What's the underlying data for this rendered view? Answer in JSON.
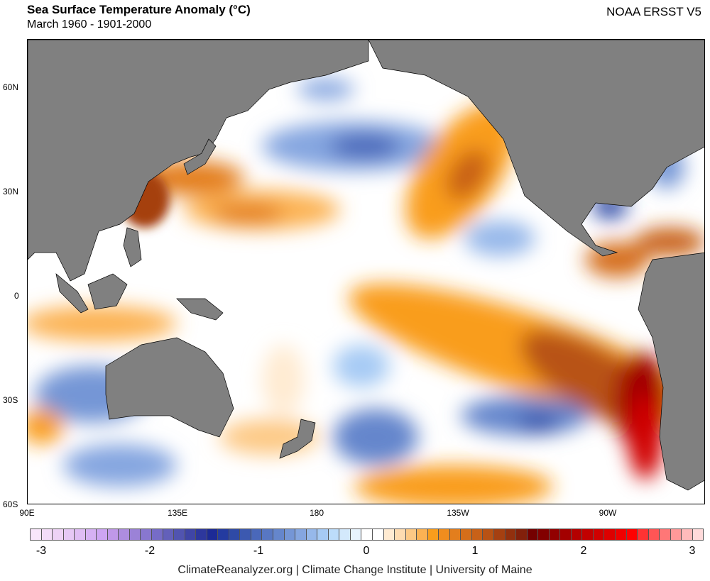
{
  "header": {
    "title": "Sea Surface Temperature Anomaly (°C)",
    "subtitle": "March 1960 - 1901-2000",
    "source": "NOAA ERSST V5"
  },
  "map": {
    "lat_labels": [
      "60N",
      "30N",
      "0",
      "30S",
      "60S"
    ],
    "lon_labels": [
      "90E",
      "135E",
      "180",
      "135W",
      "90W"
    ],
    "land_color": "#808080"
  },
  "colorbar": {
    "tick_labels": [
      "-3",
      "-2",
      "-1",
      "0",
      "1",
      "2",
      "3"
    ],
    "range": [
      -3.1,
      3.1
    ],
    "colors": [
      "#f9e6fb",
      "#f4dcf8",
      "#eed2f6",
      "#e6c8f5",
      "#dfbdf4",
      "#d6b1f3",
      "#cda5f2",
      "#bf98e8",
      "#ad8ddf",
      "#9b82d7",
      "#8877cf",
      "#766cc7",
      "#6360ba",
      "#5154b0",
      "#3f45a6",
      "#2d379d",
      "#1c2a96",
      "#243ba0",
      "#2f4aa6",
      "#3c59b0",
      "#4a68ba",
      "#5877c3",
      "#6586cc",
      "#7596d6",
      "#85a6e0",
      "#96b8ea",
      "#a6caf4",
      "#bcdcfa",
      "#d3e9fc",
      "#e8f4fe",
      "#ffffff",
      "#ffffff",
      "#ffebd2",
      "#fedcb1",
      "#fdc985",
      "#fcb253",
      "#f99d1c",
      "#ef8d1e",
      "#e37e1d",
      "#d56e1a",
      "#c86118",
      "#b85214",
      "#a54011",
      "#92300e",
      "#82200b",
      "#740000",
      "#820000",
      "#920000",
      "#a30000",
      "#b40000",
      "#c20000",
      "#d00000",
      "#dd0000",
      "#ee0000",
      "#ff0000",
      "#ff3333",
      "#ff5555",
      "#ff7777",
      "#ff9999",
      "#ffbbbb",
      "#ffdada"
    ]
  },
  "footer": {
    "credit": "ClimateReanalyzer.org | Climate Change Institute | University of Maine"
  }
}
